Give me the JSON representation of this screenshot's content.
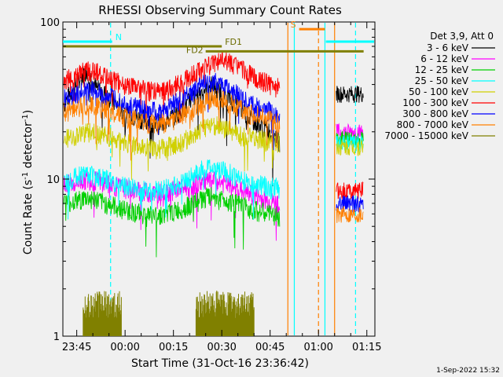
{
  "chart_data": {
    "type": "line",
    "title": "RHESSI Observing Summary Count Rates",
    "xlabel": "Start Time (31-Oct-16 23:36:42)",
    "ylabel_main": "Count Rate (s",
    "ylabel_sup1": "-1",
    "ylabel_mid": " detector",
    "ylabel_sup2": "-1",
    "ylabel_end": ")",
    "yscale": "log",
    "ylim": [
      1,
      100
    ],
    "xlim_minutes": [
      -19.3,
      77.5
    ],
    "x_ticks": [
      {
        "label": "23:45",
        "m": -15
      },
      {
        "label": "00:00",
        "m": 0
      },
      {
        "label": "00:15",
        "m": 15
      },
      {
        "label": "00:30",
        "m": 30
      },
      {
        "label": "00:45",
        "m": 45
      },
      {
        "label": "01:00",
        "m": 60
      },
      {
        "label": "01:15",
        "m": 75
      }
    ],
    "y_ticks": [
      {
        "label": "1",
        "v": 1
      },
      {
        "label": "10",
        "v": 10
      },
      {
        "label": "100",
        "v": 100
      }
    ],
    "legend_title": "Det 3,9, Att 0",
    "legend_placement": "right",
    "series": [
      {
        "name": "3 - 6 keV",
        "color": "#000000",
        "values": [
          [
            -19,
            30
          ],
          [
            -15,
            40
          ],
          [
            -12,
            50
          ],
          [
            -9,
            38
          ],
          [
            -6,
            35
          ],
          [
            -3,
            30
          ],
          [
            0,
            27
          ],
          [
            3,
            25
          ],
          [
            6,
            24
          ],
          [
            9,
            22
          ],
          [
            12,
            23
          ],
          [
            15,
            25
          ],
          [
            18,
            28
          ],
          [
            21,
            33
          ],
          [
            24,
            37
          ],
          [
            27,
            40
          ],
          [
            30,
            35
          ],
          [
            33,
            32
          ],
          [
            36,
            28
          ],
          [
            39,
            24
          ],
          [
            42,
            22
          ],
          [
            45,
            20
          ],
          [
            48,
            17
          ]
        ]
      },
      {
        "name": "6 - 12 keV",
        "color": "#ff00ff",
        "values": [
          [
            -19,
            9.2
          ],
          [
            -15,
            9.5
          ],
          [
            -12,
            10
          ],
          [
            -9,
            9.8
          ],
          [
            -6,
            9.4
          ],
          [
            -3,
            9
          ],
          [
            0,
            8.8
          ],
          [
            3,
            8.5
          ],
          [
            6,
            8.3
          ],
          [
            9,
            8.2
          ],
          [
            12,
            8.3
          ],
          [
            15,
            8.5
          ],
          [
            18,
            8.8
          ],
          [
            21,
            9.2
          ],
          [
            24,
            9.6
          ],
          [
            27,
            9.8
          ],
          [
            30,
            9.5
          ],
          [
            33,
            9
          ],
          [
            36,
            8.5
          ],
          [
            39,
            8
          ],
          [
            42,
            7.6
          ],
          [
            45,
            7.2
          ],
          [
            48,
            7
          ]
        ]
      },
      {
        "name": "12 - 25 keV",
        "color": "#00d000",
        "values": [
          [
            -19,
            7
          ],
          [
            -15,
            7.3
          ],
          [
            -12,
            7.6
          ],
          [
            -9,
            7.4
          ],
          [
            -6,
            7
          ],
          [
            -3,
            6.7
          ],
          [
            0,
            6.4
          ],
          [
            3,
            6.2
          ],
          [
            6,
            6
          ],
          [
            9,
            5.9
          ],
          [
            12,
            6
          ],
          [
            15,
            6.2
          ],
          [
            18,
            6.5
          ],
          [
            21,
            7
          ],
          [
            24,
            7.5
          ],
          [
            27,
            7.8
          ],
          [
            30,
            7.5
          ],
          [
            33,
            7.2
          ],
          [
            36,
            6.8
          ],
          [
            39,
            6.5
          ],
          [
            42,
            6.2
          ],
          [
            45,
            6
          ],
          [
            48,
            5.8
          ]
        ]
      },
      {
        "name": "25 - 50 keV",
        "color": "#00ffff",
        "values": [
          [
            -19,
            9.5
          ],
          [
            -15,
            10.5
          ],
          [
            -12,
            11
          ],
          [
            -9,
            10.5
          ],
          [
            -6,
            10
          ],
          [
            -3,
            9.5
          ],
          [
            0,
            9
          ],
          [
            3,
            8.8
          ],
          [
            6,
            8.6
          ],
          [
            9,
            8.5
          ],
          [
            12,
            8.7
          ],
          [
            15,
            9
          ],
          [
            18,
            9.6
          ],
          [
            21,
            10.5
          ],
          [
            24,
            11.5
          ],
          [
            27,
            12
          ],
          [
            30,
            11.5
          ],
          [
            33,
            10.8
          ],
          [
            36,
            10
          ],
          [
            39,
            9.5
          ],
          [
            42,
            9.2
          ],
          [
            45,
            9
          ],
          [
            48,
            8.8
          ]
        ]
      },
      {
        "name": "50 - 100 keV",
        "color": "#d0d000",
        "values": [
          [
            -19,
            18
          ],
          [
            -15,
            19
          ],
          [
            -12,
            20
          ],
          [
            -9,
            19.5
          ],
          [
            -6,
            19
          ],
          [
            -3,
            18
          ],
          [
            0,
            17
          ],
          [
            3,
            16.5
          ],
          [
            6,
            16
          ],
          [
            9,
            15.5
          ],
          [
            12,
            15.8
          ],
          [
            15,
            16.5
          ],
          [
            18,
            17.5
          ],
          [
            21,
            19
          ],
          [
            24,
            21
          ],
          [
            27,
            22.5
          ],
          [
            30,
            21.5
          ],
          [
            33,
            20
          ],
          [
            36,
            19
          ],
          [
            39,
            18.5
          ],
          [
            42,
            18
          ],
          [
            45,
            17.5
          ],
          [
            48,
            17
          ]
        ]
      },
      {
        "name": "100 - 300 keV",
        "color": "#ff0000",
        "values": [
          [
            -19,
            43
          ],
          [
            -15,
            45
          ],
          [
            -12,
            50
          ],
          [
            -9,
            48
          ],
          [
            -6,
            45
          ],
          [
            -3,
            42
          ],
          [
            0,
            40
          ],
          [
            3,
            38
          ],
          [
            6,
            37
          ],
          [
            9,
            36
          ],
          [
            12,
            37
          ],
          [
            15,
            39
          ],
          [
            18,
            42
          ],
          [
            21,
            46
          ],
          [
            24,
            50
          ],
          [
            27,
            55
          ],
          [
            30,
            57
          ],
          [
            33,
            55
          ],
          [
            36,
            50
          ],
          [
            39,
            46
          ],
          [
            42,
            43
          ],
          [
            45,
            40
          ],
          [
            48,
            38
          ]
        ]
      },
      {
        "name": "300 - 800 keV",
        "color": "#0000ff",
        "values": [
          [
            -19,
            33
          ],
          [
            -15,
            35
          ],
          [
            -12,
            37
          ],
          [
            -9,
            36
          ],
          [
            -6,
            34
          ],
          [
            -3,
            32
          ],
          [
            0,
            30
          ],
          [
            3,
            29
          ],
          [
            6,
            28
          ],
          [
            9,
            27
          ],
          [
            12,
            28
          ],
          [
            15,
            30
          ],
          [
            18,
            33
          ],
          [
            21,
            36
          ],
          [
            24,
            40
          ],
          [
            27,
            42
          ],
          [
            30,
            40
          ],
          [
            33,
            37
          ],
          [
            36,
            33
          ],
          [
            39,
            30
          ],
          [
            42,
            28
          ],
          [
            45,
            27
          ],
          [
            48,
            25
          ]
        ]
      },
      {
        "name": "800 - 7000 keV",
        "color": "#ff8000",
        "values": [
          [
            -19,
            27
          ],
          [
            -15,
            28
          ],
          [
            -12,
            30
          ],
          [
            -9,
            29
          ],
          [
            -6,
            28
          ],
          [
            -3,
            26
          ],
          [
            0,
            25
          ],
          [
            3,
            24
          ],
          [
            6,
            23
          ],
          [
            9,
            22.5
          ],
          [
            12,
            23
          ],
          [
            15,
            24
          ],
          [
            18,
            26
          ],
          [
            21,
            28
          ],
          [
            24,
            31
          ],
          [
            27,
            33
          ],
          [
            30,
            32
          ],
          [
            33,
            30
          ],
          [
            36,
            28
          ],
          [
            39,
            26
          ],
          [
            42,
            25
          ],
          [
            45,
            24
          ],
          [
            48,
            23
          ]
        ]
      },
      {
        "name": "7000 - 15000 keV",
        "color": "#808000",
        "values": [
          [
            -13,
            1.8
          ],
          [
            -11,
            1.5
          ],
          [
            -9,
            1.9
          ],
          [
            -7,
            1.3
          ],
          [
            -5,
            1.8
          ],
          [
            -3,
            1.5
          ],
          [
            -1,
            1.7
          ],
          [
            22,
            1.8
          ],
          [
            24,
            1.4
          ],
          [
            26,
            1.9
          ],
          [
            28,
            1.6
          ],
          [
            30,
            1.8
          ],
          [
            32,
            1.3
          ],
          [
            34,
            1.9
          ],
          [
            36,
            1.5
          ],
          [
            38,
            1.7
          ],
          [
            40,
            1.4
          ]
        ]
      }
    ],
    "later_segment_minutes": [
      65.5,
      74
    ],
    "later_values": [
      35,
      20,
      18,
      17,
      16,
      8.5,
      7,
      6,
      5.5
    ],
    "annotations": [
      {
        "label": "N",
        "color": "#00ffff",
        "x0": -19.3,
        "x1": -4,
        "v": 75
      },
      {
        "label": "FD1",
        "color": "#808000",
        "x0": -19.3,
        "x1": 30,
        "v": 70
      },
      {
        "label": "FD2",
        "color": "#808000",
        "x0": 25,
        "x1": 74,
        "v": 65
      },
      {
        "label": "S",
        "color": "#ff8000",
        "x0": 54,
        "x1": 62,
        "v": 90
      }
    ],
    "vlines": [
      {
        "m": -4.5,
        "color": "#00ffff",
        "style": "dashed"
      },
      {
        "m": 50.5,
        "color": "#ff8000",
        "style": "solid"
      },
      {
        "m": 52.5,
        "color": "#00ffff",
        "style": "solid"
      },
      {
        "m": 60,
        "color": "#ff8000",
        "style": "dashed"
      },
      {
        "m": 62,
        "color": "#00ffff",
        "style": "solid"
      },
      {
        "m": 65,
        "color": "#ff8000",
        "style": "solid"
      },
      {
        "m": 71.5,
        "color": "#00ffff",
        "style": "dashed"
      }
    ],
    "timestamp": "1-Sep-2022 15:32"
  }
}
